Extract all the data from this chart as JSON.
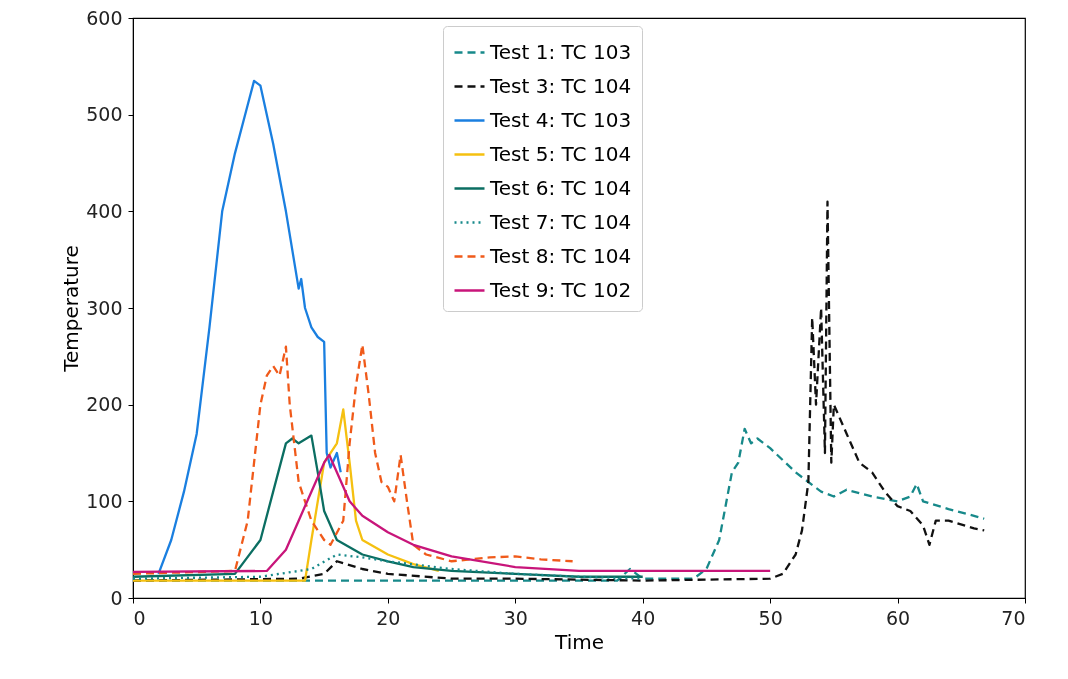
{
  "chart_data": {
    "type": "line",
    "xlabel": "Time",
    "ylabel": "Temperature",
    "xlim": [
      0,
      70
    ],
    "ylim": [
      0,
      600
    ],
    "xticks": [
      0,
      10,
      20,
      30,
      40,
      50,
      60,
      70
    ],
    "yticks": [
      0,
      100,
      200,
      300,
      400,
      500,
      600
    ],
    "grid": false,
    "legend": "top",
    "series": [
      {
        "name": "Test 1: TC 103",
        "color": "#17898a",
        "line_style": "dashed",
        "x": [
          0,
          10,
          20,
          30,
          38,
          39,
          40,
          44,
          45,
          46,
          47,
          47.5,
          48,
          48.5,
          49,
          50,
          52,
          54,
          55,
          56,
          58,
          60,
          61,
          61.5,
          62,
          64,
          66,
          66.8
        ],
        "values": [
          18,
          18,
          18,
          18,
          18,
          30,
          20,
          20,
          30,
          60,
          130,
          140,
          175,
          160,
          165,
          155,
          130,
          110,
          105,
          112,
          105,
          100,
          105,
          118,
          100,
          92,
          85,
          82
        ]
      },
      {
        "name": "Test 3: TC 104",
        "color": "#111111",
        "line_style": "dashed",
        "x": [
          0,
          13,
          15,
          16,
          18,
          20,
          25,
          30,
          40,
          50,
          51,
          52,
          52.5,
          53,
          53.3,
          53.6,
          54,
          54.3,
          54.5,
          54.8,
          55,
          56,
          57,
          58,
          59,
          60,
          61,
          62,
          62.5,
          63,
          64,
          66,
          66.8
        ],
        "values": [
          18,
          20,
          25,
          38,
          30,
          25,
          20,
          20,
          18,
          20,
          25,
          45,
          70,
          120,
          290,
          200,
          300,
          150,
          410,
          140,
          200,
          170,
          140,
          130,
          110,
          95,
          90,
          75,
          55,
          80,
          80,
          72,
          70
        ]
      },
      {
        "name": "Test 4: TC 103",
        "color": "#1a7fe0",
        "line_style": "solid",
        "x": [
          2,
          3,
          4,
          5,
          6,
          7,
          8,
          9,
          9.5,
          10,
          11,
          12,
          13,
          13.2,
          13.5,
          14,
          14.5,
          15,
          15.2,
          15.5,
          16,
          16.3
        ],
        "values": [
          25,
          60,
          110,
          170,
          280,
          400,
          460,
          510,
          535,
          530,
          470,
          400,
          320,
          330,
          300,
          280,
          270,
          265,
          150,
          135,
          150,
          130
        ]
      },
      {
        "name": "Test 5: TC 104",
        "color": "#f5c010",
        "line_style": "solid",
        "x": [
          0,
          13.5,
          14,
          15,
          16,
          16.5,
          17,
          17.5,
          18,
          20,
          22,
          24
        ],
        "values": [
          18,
          18,
          60,
          140,
          160,
          195,
          140,
          80,
          60,
          45,
          35,
          28
        ]
      },
      {
        "name": "Test 6: TC 104",
        "color": "#0b6e62",
        "line_style": "solid",
        "x": [
          0,
          8,
          10,
          11,
          12,
          12.5,
          13,
          14,
          14.5,
          15,
          16,
          18,
          20,
          22,
          25,
          30,
          35,
          40
        ],
        "values": [
          22,
          25,
          60,
          110,
          160,
          165,
          160,
          168,
          130,
          90,
          60,
          45,
          38,
          32,
          28,
          25,
          22,
          22
        ]
      },
      {
        "name": "Test 7: TC 104",
        "color": "#17898a",
        "line_style": "dotted",
        "x": [
          0,
          10,
          14,
          16,
          18,
          20,
          25,
          30,
          35,
          40
        ],
        "values": [
          20,
          22,
          30,
          45,
          42,
          38,
          30,
          25,
          22,
          20
        ]
      },
      {
        "name": "Test 8: TC 104",
        "color": "#f05a1a",
        "line_style": "dashed",
        "x": [
          0,
          8,
          9,
          10,
          10.5,
          11,
          11.5,
          12,
          12.3,
          13,
          14,
          15,
          15.5,
          16.5,
          17,
          17.5,
          18,
          18.5,
          19,
          19.5,
          20,
          20.5,
          21,
          21.5,
          22,
          23,
          25,
          28,
          30,
          32,
          34.5
        ],
        "values": [
          25,
          28,
          80,
          200,
          230,
          240,
          230,
          260,
          200,
          120,
          80,
          60,
          55,
          80,
          160,
          220,
          262,
          210,
          150,
          120,
          115,
          100,
          148,
          100,
          55,
          45,
          38,
          42,
          43,
          40,
          38
        ]
      },
      {
        "name": "Test 9: TC 102",
        "color": "#c8157a",
        "line_style": "solid",
        "x": [
          0,
          10.5,
          12,
          13,
          14,
          15,
          15.4,
          16,
          17,
          18,
          20,
          22,
          25,
          30,
          35,
          40,
          50
        ],
        "values": [
          27,
          28,
          50,
          80,
          110,
          140,
          148,
          130,
          100,
          85,
          68,
          55,
          43,
          32,
          28,
          28,
          28
        ]
      }
    ]
  }
}
